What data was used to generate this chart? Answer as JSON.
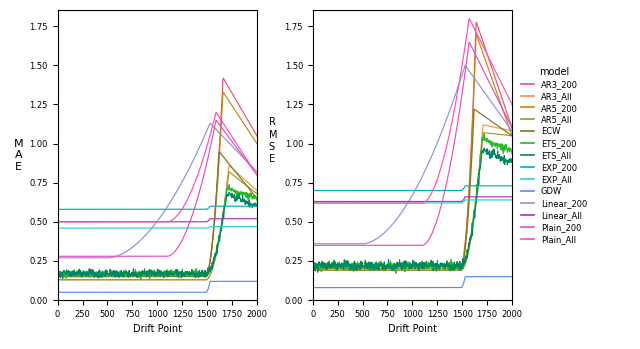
{
  "models": [
    "AR3_200",
    "AR3_All",
    "AR5_200",
    "AR5_All",
    "ECW",
    "ETS_200",
    "ETS_All",
    "EXP_200",
    "EXP_All",
    "GDW",
    "Linear_200",
    "Linear_All",
    "Plain_200",
    "Plain_All"
  ],
  "colors": {
    "AR3_200": "#e8536e",
    "AR3_All": "#f0944a",
    "AR5_200": "#c8860a",
    "AR5_All": "#a09820",
    "ECW": "#787820",
    "ETS_200": "#28b828",
    "ETS_All": "#008866",
    "EXP_200": "#00b0b0",
    "EXP_All": "#30d0d0",
    "GDW": "#5090e8",
    "Linear_200": "#9090d8",
    "Linear_All": "#a038b8",
    "Plain_200": "#e050c0",
    "Plain_All": "#ff50b0"
  },
  "mae_ylim": [
    0.0,
    1.85
  ],
  "rmse_ylim": [
    0.0,
    1.85
  ],
  "xlim": [
    0,
    2000
  ],
  "xlabel": "Drift Point",
  "left_ylabel": "M\nA\nE",
  "legend_title": "model",
  "mae_params": {
    "AR3_200": [
      0.16,
      1490,
      1660,
      1.42,
      1.05
    ],
    "AR3_All": [
      0.13,
      1490,
      1720,
      0.86,
      0.7
    ],
    "AR5_200": [
      0.16,
      1490,
      1660,
      1.33,
      1.0
    ],
    "AR5_All": [
      0.13,
      1490,
      1720,
      0.82,
      0.68
    ],
    "ECW": [
      0.15,
      1490,
      1620,
      0.95,
      0.65
    ],
    "ETS_200": [
      0.17,
      1490,
      1700,
      0.72,
      0.65
    ],
    "ETS_All": [
      0.17,
      1490,
      1700,
      0.68,
      0.6
    ],
    "EXP_200": [
      0.58,
      1490,
      1530,
      0.6,
      0.6
    ],
    "EXP_All": [
      0.46,
      1490,
      1530,
      0.47,
      0.47
    ],
    "GDW": [
      0.05,
      1490,
      1530,
      0.12,
      0.12
    ],
    "Linear_200": [
      0.27,
      500,
      1530,
      1.13,
      0.82
    ],
    "Linear_All": [
      0.5,
      1490,
      1530,
      0.52,
      0.52
    ],
    "Plain_200": [
      0.28,
      1100,
      1590,
      1.15,
      0.8
    ],
    "Plain_All": [
      0.5,
      1100,
      1590,
      1.2,
      0.8
    ]
  },
  "rmse_params": {
    "AR3_200": [
      0.22,
      1490,
      1640,
      1.78,
      1.1
    ],
    "AR3_All": [
      0.19,
      1490,
      1710,
      1.12,
      1.08
    ],
    "AR5_200": [
      0.22,
      1490,
      1640,
      1.7,
      1.05
    ],
    "AR5_All": [
      0.19,
      1490,
      1710,
      1.07,
      1.05
    ],
    "ECW": [
      0.2,
      1490,
      1620,
      1.22,
      1.05
    ],
    "ETS_200": [
      0.22,
      1490,
      1700,
      1.04,
      0.95
    ],
    "ETS_All": [
      0.22,
      1490,
      1700,
      0.96,
      0.88
    ],
    "EXP_200": [
      0.7,
      1490,
      1530,
      0.73,
      0.73
    ],
    "EXP_All": [
      0.62,
      1490,
      1530,
      0.64,
      0.64
    ],
    "GDW": [
      0.08,
      1490,
      1530,
      0.15,
      0.15
    ],
    "Linear_200": [
      0.36,
      500,
      1530,
      1.5,
      1.08
    ],
    "Linear_All": [
      0.63,
      1490,
      1530,
      0.66,
      0.66
    ],
    "Plain_200": [
      0.35,
      1100,
      1570,
      1.65,
      1.1
    ],
    "Plain_All": [
      0.62,
      1100,
      1570,
      1.8,
      1.25
    ]
  }
}
